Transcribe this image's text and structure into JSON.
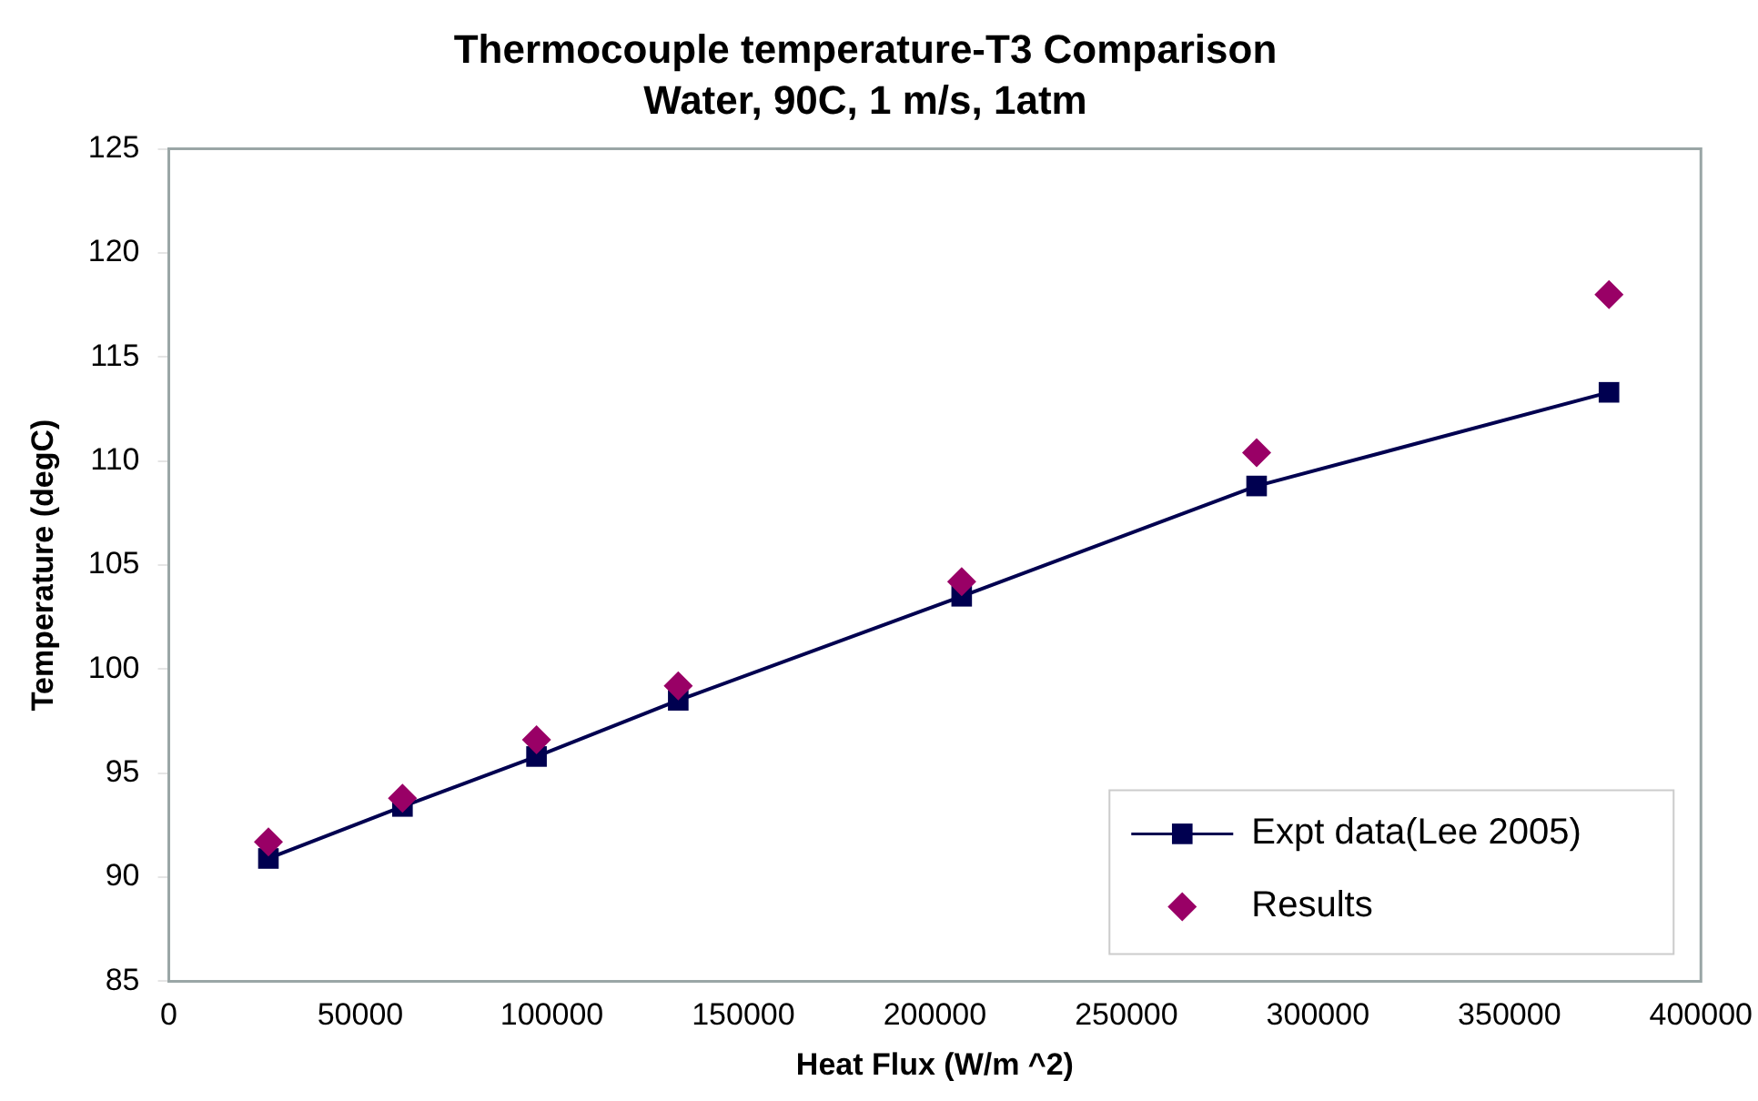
{
  "chart_data": {
    "type": "line",
    "title": "Thermocouple temperature-T3 Comparison",
    "subtitle": "Water, 90C, 1 m/s, 1atm",
    "xlabel": "Heat Flux (W/m ^2)",
    "ylabel": "Temperature (degC)",
    "x": [
      26000,
      61000,
      96000,
      133000,
      207000,
      284000,
      376000
    ],
    "series": [
      {
        "name": "Expt data(Lee 2005)",
        "type": "line",
        "marker": "square",
        "color": "#000050",
        "values": [
          90.9,
          93.4,
          95.8,
          98.5,
          103.5,
          108.8,
          113.3
        ]
      },
      {
        "name": "Results",
        "type": "scatter",
        "marker": "diamond",
        "color": "#990066",
        "values": [
          91.7,
          93.8,
          96.6,
          99.2,
          104.2,
          110.4,
          118.0
        ]
      }
    ],
    "xlim": [
      0,
      400000
    ],
    "xticks": [
      0,
      50000,
      100000,
      150000,
      200000,
      250000,
      300000,
      350000,
      400000
    ],
    "ylim": [
      85,
      125
    ],
    "yticks": [
      85,
      90,
      95,
      100,
      105,
      110,
      115,
      120,
      125
    ],
    "grid": false,
    "legend": "bottom right"
  }
}
